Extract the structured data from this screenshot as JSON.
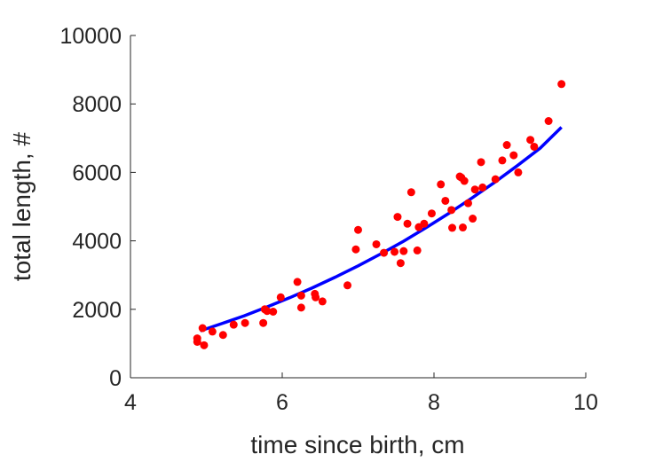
{
  "chart_data": {
    "type": "scatter",
    "title": "",
    "xlabel": "time since birth, cm",
    "ylabel": "total length, #",
    "xlim": [
      4,
      10
    ],
    "ylim": [
      0,
      10000
    ],
    "x_ticks": [
      4,
      6,
      8,
      10
    ],
    "y_ticks": [
      0,
      2000,
      4000,
      6000,
      8000,
      10000
    ],
    "x_tick_labels": [
      "4",
      "6",
      "8",
      "10"
    ],
    "y_tick_labels": [
      "0",
      "2000",
      "4000",
      "6000",
      "8000",
      "10000"
    ],
    "grid": false,
    "colors": {
      "points": "#ff0000",
      "fit": "#0000ff",
      "axis": "#262626"
    },
    "series": [
      {
        "kind": "points",
        "x": [
          4.88,
          4.88,
          4.95,
          4.97,
          5.08,
          5.22,
          5.36,
          5.51,
          5.75,
          5.77,
          5.8,
          5.88,
          5.98,
          6.2,
          6.25,
          6.25,
          6.43,
          6.44,
          6.53,
          6.86,
          6.97,
          7.0,
          7.24,
          7.34,
          7.48,
          7.52,
          7.56,
          7.6,
          7.65,
          7.7,
          7.78,
          7.8,
          7.87,
          7.97,
          8.09,
          8.15,
          8.23,
          8.24,
          8.34,
          8.36,
          8.38,
          8.4,
          8.45,
          8.51,
          8.54,
          8.62,
          8.64,
          8.81,
          8.9,
          8.96,
          9.05,
          9.11,
          9.27,
          9.32,
          9.51,
          9.68
        ],
        "y": [
          1150,
          1050,
          1450,
          950,
          1350,
          1250,
          1550,
          1600,
          1600,
          2000,
          1950,
          1930,
          2350,
          2800,
          2400,
          2050,
          2450,
          2350,
          2230,
          2700,
          3750,
          4320,
          3900,
          3650,
          3680,
          4700,
          3350,
          3700,
          4500,
          5420,
          3720,
          4400,
          4500,
          4800,
          5650,
          5170,
          4900,
          4380,
          5880,
          5850,
          4390,
          5750,
          5100,
          4650,
          5500,
          6300,
          5560,
          5800,
          6350,
          6800,
          6500,
          6000,
          6950,
          6750,
          7500,
          8580
        ]
      },
      {
        "kind": "fit",
        "x": [
          4.92,
          5.2,
          5.5,
          5.8,
          6.1,
          6.4,
          6.7,
          7.0,
          7.3,
          7.6,
          7.9,
          8.2,
          8.5,
          8.8,
          9.1,
          9.4,
          9.68
        ],
        "y": [
          1370,
          1580,
          1810,
          2070,
          2340,
          2630,
          2940,
          3270,
          3620,
          3990,
          4390,
          4810,
          5250,
          5710,
          6200,
          6710,
          7320
        ]
      }
    ]
  }
}
